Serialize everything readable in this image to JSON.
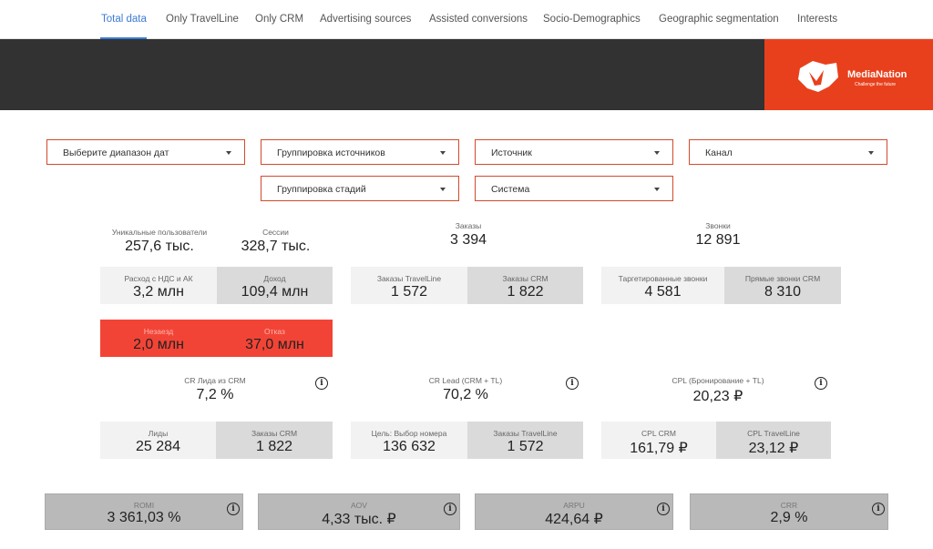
{
  "tabs": [
    {
      "label": "Total data",
      "active": true
    },
    {
      "label": "Only TravelLine"
    },
    {
      "label": "Only CRM"
    },
    {
      "label": "Advertising sources"
    },
    {
      "label": "Assisted conversions"
    },
    {
      "label": "Socio-Demographics"
    },
    {
      "label": "Geographic segmentation"
    },
    {
      "label": "Interests"
    }
  ],
  "logo": {
    "name": "MediaNation",
    "tagline": "Challenge the future",
    "color": "#e8401c"
  },
  "filters": {
    "date_range": "Выберите диапазон дат",
    "source_grouping": "Группировка источников",
    "source": "Источник",
    "channel": "Канал",
    "stage_grouping": "Группировка стадий",
    "system": "Система"
  },
  "kpis": {
    "unique_users": {
      "label": "Уникальные пользователи",
      "value": "257,6 тыс."
    },
    "sessions": {
      "label": "Сессии",
      "value": "328,7 тыс."
    },
    "orders": {
      "label": "Заказы",
      "value": "3 394"
    },
    "calls": {
      "label": "Звонки",
      "value": "12 891"
    }
  },
  "row1": {
    "expense": {
      "label": "Расход с НДС и АК",
      "value": "3,2 млн"
    },
    "income": {
      "label": "Доход",
      "value": "109,4 млн"
    },
    "orders_tl": {
      "label": "Заказы TravelLine",
      "value": "1 572"
    },
    "orders_crm": {
      "label": "Заказы CRM",
      "value": "1 822"
    },
    "targeted_calls": {
      "label": "Таргетированные звонки",
      "value": "4 581"
    },
    "direct_calls_crm": {
      "label": "Прямые звонки CRM",
      "value": "8 310"
    }
  },
  "row2": {
    "no_show": {
      "label": "Незаезд",
      "value": "2,0 млн"
    },
    "refusal": {
      "label": "Отказ",
      "value": "37,0 млн"
    }
  },
  "ratios": {
    "cr_lead_crm": {
      "label": "CR Лида из CRM",
      "value": "7,2 %"
    },
    "cr_lead_crm_tl": {
      "label": "CR Lead (CRM + TL)",
      "value": "70,2 %"
    },
    "cpl_booking_tl": {
      "label": "CPL (Бронирование + TL)",
      "value": "20,23 ₽"
    }
  },
  "row3": {
    "leads": {
      "label": "Лиды",
      "value": "25 284"
    },
    "orders_crm": {
      "label": "Заказы CRM",
      "value": "1 822"
    },
    "goal_room_choice": {
      "label": "Цель: Выбор номера",
      "value": "136 632"
    },
    "orders_tl": {
      "label": "Заказы TravelLine",
      "value": "1 572"
    },
    "cpl_crm": {
      "label": "CPL CRM",
      "value": "161,79 ₽"
    },
    "cpl_tl": {
      "label": "CPL TravelLine",
      "value": "23,12 ₽"
    }
  },
  "bottom": {
    "romi": {
      "label": "ROMI",
      "value": "3 361,03 %"
    },
    "aov": {
      "label": "AOV",
      "value": "4,33 тыс. ₽"
    },
    "arpu": {
      "label": "ARPU",
      "value": "424,64 ₽"
    },
    "crr": {
      "label": "CRR",
      "value": "2,9 %"
    }
  },
  "info_glyph": "i"
}
